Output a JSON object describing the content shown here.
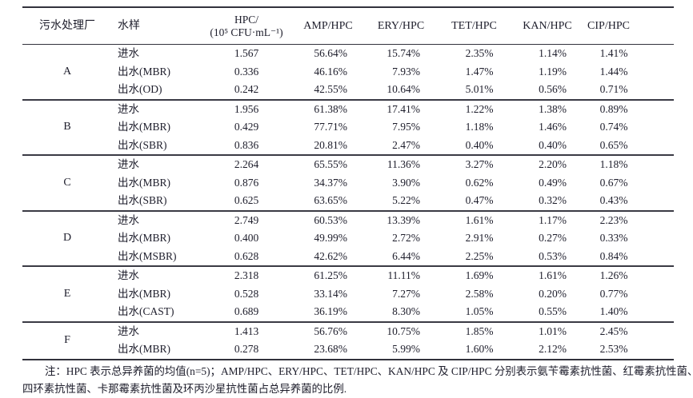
{
  "table": {
    "headers": {
      "plant": "污水处理厂",
      "sample": "水样",
      "hpc_line1": "HPC/",
      "hpc_line2": "(10⁵ CFU·mL⁻¹)",
      "amp": "AMP/HPC",
      "ery": "ERY/HPC",
      "tet": "TET/HPC",
      "kan": "KAN/HPC",
      "cip": "CIP/HPC"
    },
    "groups": [
      {
        "plant": "A",
        "rows": [
          {
            "sample": "进水",
            "hpc": "1.567",
            "amp": "56.64%",
            "ery": "15.74%",
            "tet": "2.35%",
            "kan": "1.14%",
            "cip": "1.41%"
          },
          {
            "sample": "出水(MBR)",
            "hpc": "0.336",
            "amp": "46.16%",
            "ery": "7.93%",
            "tet": "1.47%",
            "kan": "1.19%",
            "cip": "1.44%"
          },
          {
            "sample": "出水(OD)",
            "hpc": "0.242",
            "amp": "42.55%",
            "ery": "10.64%",
            "tet": "5.01%",
            "kan": "0.56%",
            "cip": "0.71%"
          }
        ]
      },
      {
        "plant": "B",
        "rows": [
          {
            "sample": "进水",
            "hpc": "1.956",
            "amp": "61.38%",
            "ery": "17.41%",
            "tet": "1.22%",
            "kan": "1.38%",
            "cip": "0.89%"
          },
          {
            "sample": "出水(MBR)",
            "hpc": "0.429",
            "amp": "77.71%",
            "ery": "7.95%",
            "tet": "1.18%",
            "kan": "1.46%",
            "cip": "0.74%"
          },
          {
            "sample": "出水(SBR)",
            "hpc": "0.836",
            "amp": "20.81%",
            "ery": "2.47%",
            "tet": "0.40%",
            "kan": "0.40%",
            "cip": "0.65%"
          }
        ]
      },
      {
        "plant": "C",
        "rows": [
          {
            "sample": "进水",
            "hpc": "2.264",
            "amp": "65.55%",
            "ery": "11.36%",
            "tet": "3.27%",
            "kan": "2.20%",
            "cip": "1.18%"
          },
          {
            "sample": "出水(MBR)",
            "hpc": "0.876",
            "amp": "34.37%",
            "ery": "3.90%",
            "tet": "0.62%",
            "kan": "0.49%",
            "cip": "0.67%"
          },
          {
            "sample": "出水(SBR)",
            "hpc": "0.625",
            "amp": "63.65%",
            "ery": "5.22%",
            "tet": "0.47%",
            "kan": "0.32%",
            "cip": "0.43%"
          }
        ]
      },
      {
        "plant": "D",
        "rows": [
          {
            "sample": "进水",
            "hpc": "2.749",
            "amp": "60.53%",
            "ery": "13.39%",
            "tet": "1.61%",
            "kan": "1.17%",
            "cip": "2.23%"
          },
          {
            "sample": "出水(MBR)",
            "hpc": "0.400",
            "amp": "49.99%",
            "ery": "2.72%",
            "tet": "2.91%",
            "kan": "0.27%",
            "cip": "0.33%"
          },
          {
            "sample": "出水(MSBR)",
            "hpc": "0.628",
            "amp": "42.62%",
            "ery": "6.44%",
            "tet": "2.25%",
            "kan": "0.53%",
            "cip": "0.84%"
          }
        ]
      },
      {
        "plant": "E",
        "rows": [
          {
            "sample": "进水",
            "hpc": "2.318",
            "amp": "61.25%",
            "ery": "11.11%",
            "tet": "1.69%",
            "kan": "1.61%",
            "cip": "1.26%"
          },
          {
            "sample": "出水(MBR)",
            "hpc": "0.528",
            "amp": "33.14%",
            "ery": "7.27%",
            "tet": "2.58%",
            "kan": "0.20%",
            "cip": "0.77%"
          },
          {
            "sample": "出水(CAST)",
            "hpc": "0.689",
            "amp": "36.19%",
            "ery": "8.30%",
            "tet": "1.05%",
            "kan": "0.55%",
            "cip": "1.40%"
          }
        ]
      },
      {
        "plant": "F",
        "rows": [
          {
            "sample": "进水",
            "hpc": "1.413",
            "amp": "56.76%",
            "ery": "10.75%",
            "tet": "1.85%",
            "kan": "1.01%",
            "cip": "2.45%"
          },
          {
            "sample": "出水(MBR)",
            "hpc": "0.278",
            "amp": "23.68%",
            "ery": "5.99%",
            "tet": "1.60%",
            "kan": "2.12%",
            "cip": "2.53%"
          }
        ]
      }
    ]
  },
  "note": {
    "line1": "注：HPC 表示总异养菌的均值(n=5)；AMP/HPC、ERY/HPC、TET/HPC、KAN/HPC 及 CIP/HPC 分别表示氨苄霉素抗性菌、红霉素抗性菌、",
    "line2": "四环素抗性菌、卡那霉素抗性菌及环丙沙星抗性菌占总异养菌的比例."
  }
}
